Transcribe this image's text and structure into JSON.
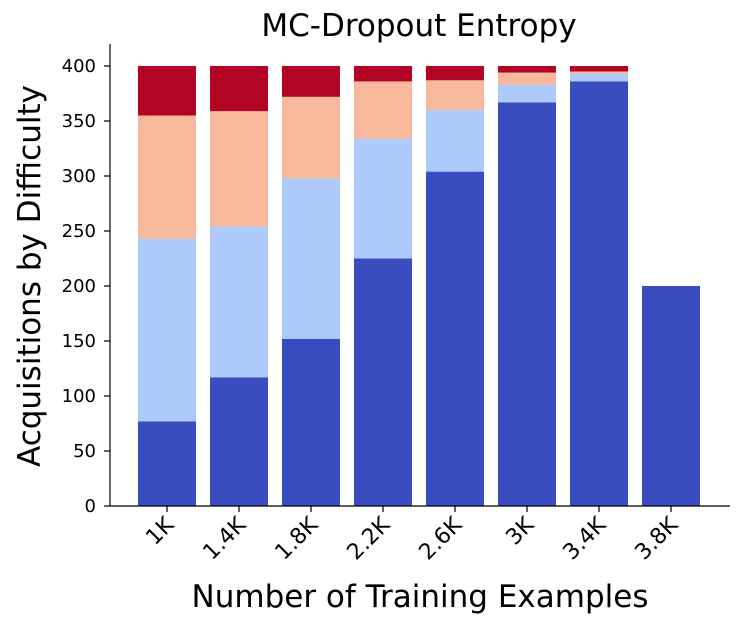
{
  "chart_data": {
    "type": "bar",
    "stacked": true,
    "title": "MC-Dropout Entropy",
    "xlabel": "Number of Training Examples",
    "ylabel": "Acquisitions by Difficulty",
    "categories": [
      "1K",
      "1.4K",
      "1.8K",
      "2.2K",
      "2.6K",
      "3K",
      "3.4K",
      "3.8K"
    ],
    "ylim": [
      0,
      420
    ],
    "yticks": [
      0,
      50,
      100,
      150,
      200,
      250,
      300,
      350,
      400
    ],
    "grid": false,
    "series": [
      {
        "color": "#3b4cc0",
        "values": [
          77,
          117,
          152,
          225,
          304,
          367,
          386,
          200
        ]
      },
      {
        "color": "#aec9fc",
        "values": [
          166,
          137,
          146,
          109,
          56,
          16,
          7,
          0
        ]
      },
      {
        "color": "#f7b89c",
        "values": [
          112,
          105,
          74,
          52,
          27,
          11,
          2,
          0
        ]
      },
      {
        "color": "#b40426",
        "values": [
          45,
          41,
          28,
          14,
          13,
          6,
          5,
          0
        ]
      }
    ]
  }
}
